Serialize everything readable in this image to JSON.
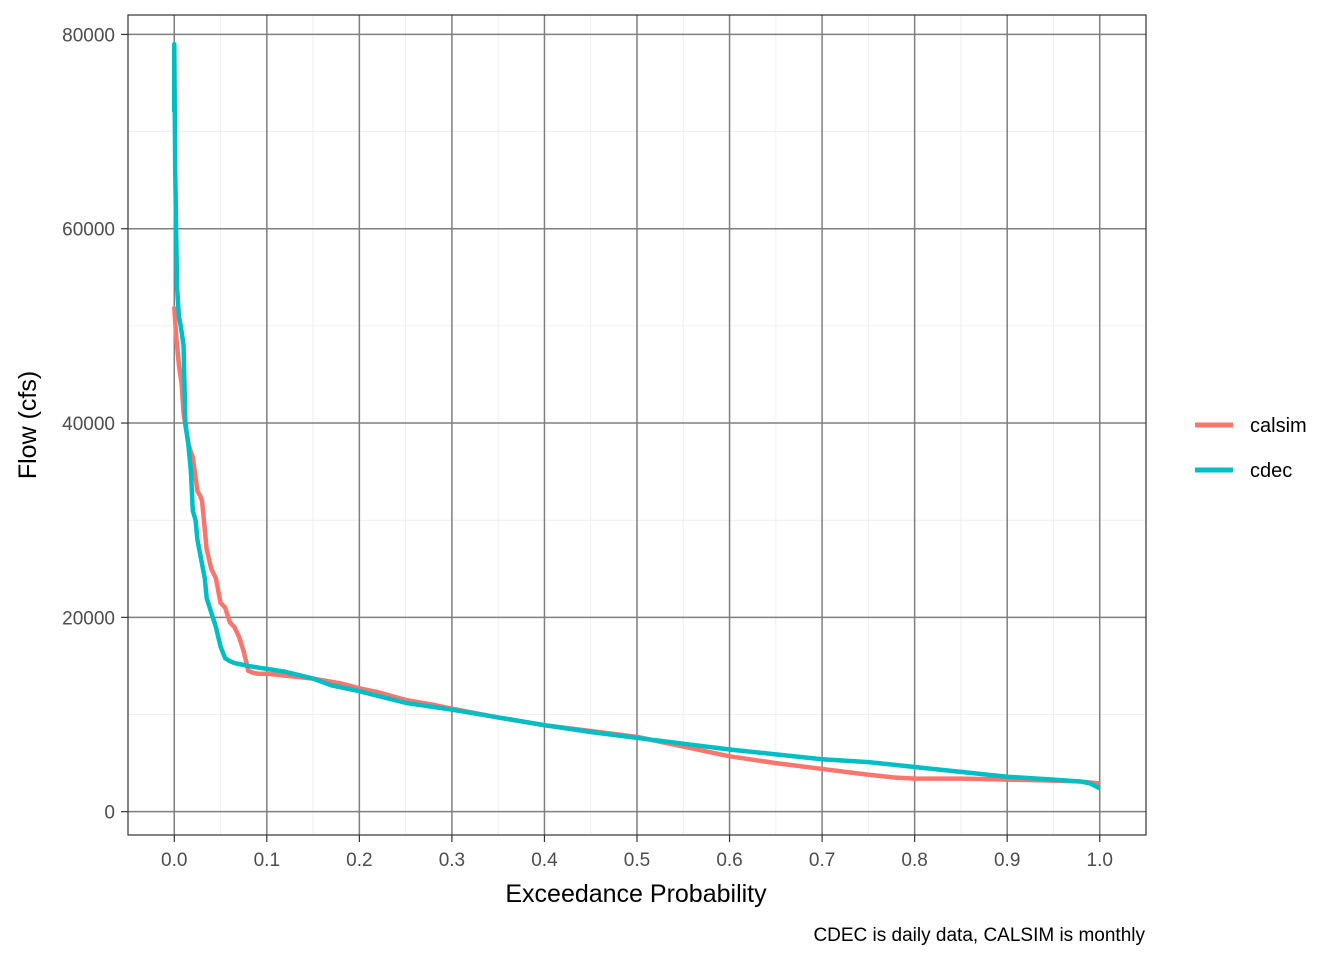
{
  "chart_data": {
    "type": "line",
    "title": "",
    "xlabel": "Exceedance Probability",
    "ylabel": "Flow (cfs)",
    "caption": "CDEC is daily data, CALSIM is monthly",
    "xlim": [
      -0.05,
      1.05
    ],
    "ylim": [
      -2400,
      82000
    ],
    "x_ticks": [
      0.0,
      0.1,
      0.2,
      0.3,
      0.4,
      0.5,
      0.6,
      0.7,
      0.8,
      0.9,
      1.0
    ],
    "x_tick_labels": [
      "0.0",
      "0.1",
      "0.2",
      "0.3",
      "0.4",
      "0.5",
      "0.6",
      "0.7",
      "0.8",
      "0.9",
      "1.0"
    ],
    "y_ticks": [
      0,
      20000,
      40000,
      60000,
      80000
    ],
    "y_tick_labels": [
      "0",
      "20000",
      "40000",
      "60000",
      "80000"
    ],
    "grid": true,
    "legend": "right",
    "series": [
      {
        "name": "calsim",
        "color": "#F8766D",
        "x": [
          0.0,
          0.002,
          0.005,
          0.008,
          0.01,
          0.015,
          0.018,
          0.02,
          0.025,
          0.028,
          0.03,
          0.033,
          0.035,
          0.04,
          0.045,
          0.05,
          0.055,
          0.06,
          0.065,
          0.07,
          0.075,
          0.08,
          0.085,
          0.09,
          0.1,
          0.12,
          0.15,
          0.18,
          0.2,
          0.22,
          0.25,
          0.28,
          0.3,
          0.35,
          0.4,
          0.45,
          0.5,
          0.55,
          0.6,
          0.65,
          0.7,
          0.75,
          0.78,
          0.8,
          0.85,
          0.9,
          0.95,
          0.98,
          1.0
        ],
        "y": [
          52000,
          49000,
          46000,
          44000,
          41000,
          38000,
          37000,
          36500,
          33000,
          32500,
          32000,
          29000,
          27000,
          25000,
          24000,
          21500,
          21000,
          19500,
          19000,
          18000,
          16500,
          14500,
          14300,
          14200,
          14200,
          14000,
          13700,
          13200,
          12700,
          12300,
          11500,
          11000,
          10600,
          9700,
          8900,
          8300,
          7700,
          6700,
          5700,
          5000,
          4400,
          3800,
          3500,
          3400,
          3400,
          3300,
          3200,
          3100,
          2900
        ]
      },
      {
        "name": "cdec",
        "color": "#00BFC4",
        "x": [
          0.0,
          0.0,
          0.001,
          0.002,
          0.003,
          0.005,
          0.007,
          0.01,
          0.012,
          0.015,
          0.018,
          0.02,
          0.023,
          0.025,
          0.028,
          0.03,
          0.033,
          0.035,
          0.04,
          0.045,
          0.05,
          0.055,
          0.06,
          0.065,
          0.07,
          0.08,
          0.1,
          0.12,
          0.15,
          0.17,
          0.2,
          0.25,
          0.3,
          0.35,
          0.4,
          0.45,
          0.5,
          0.55,
          0.6,
          0.65,
          0.7,
          0.75,
          0.8,
          0.85,
          0.9,
          0.95,
          0.98,
          0.99,
          1.0
        ],
        "y": [
          72000,
          79000,
          66000,
          60000,
          54000,
          51000,
          50000,
          48000,
          40000,
          38000,
          35000,
          31000,
          30000,
          28000,
          26500,
          25500,
          24000,
          22000,
          20500,
          19000,
          17000,
          15800,
          15500,
          15300,
          15200,
          15000,
          14700,
          14400,
          13700,
          13000,
          12400,
          11200,
          10500,
          9700,
          8900,
          8200,
          7600,
          7000,
          6400,
          5900,
          5400,
          5100,
          4600,
          4100,
          3600,
          3300,
          3100,
          2900,
          2400
        ]
      }
    ]
  }
}
